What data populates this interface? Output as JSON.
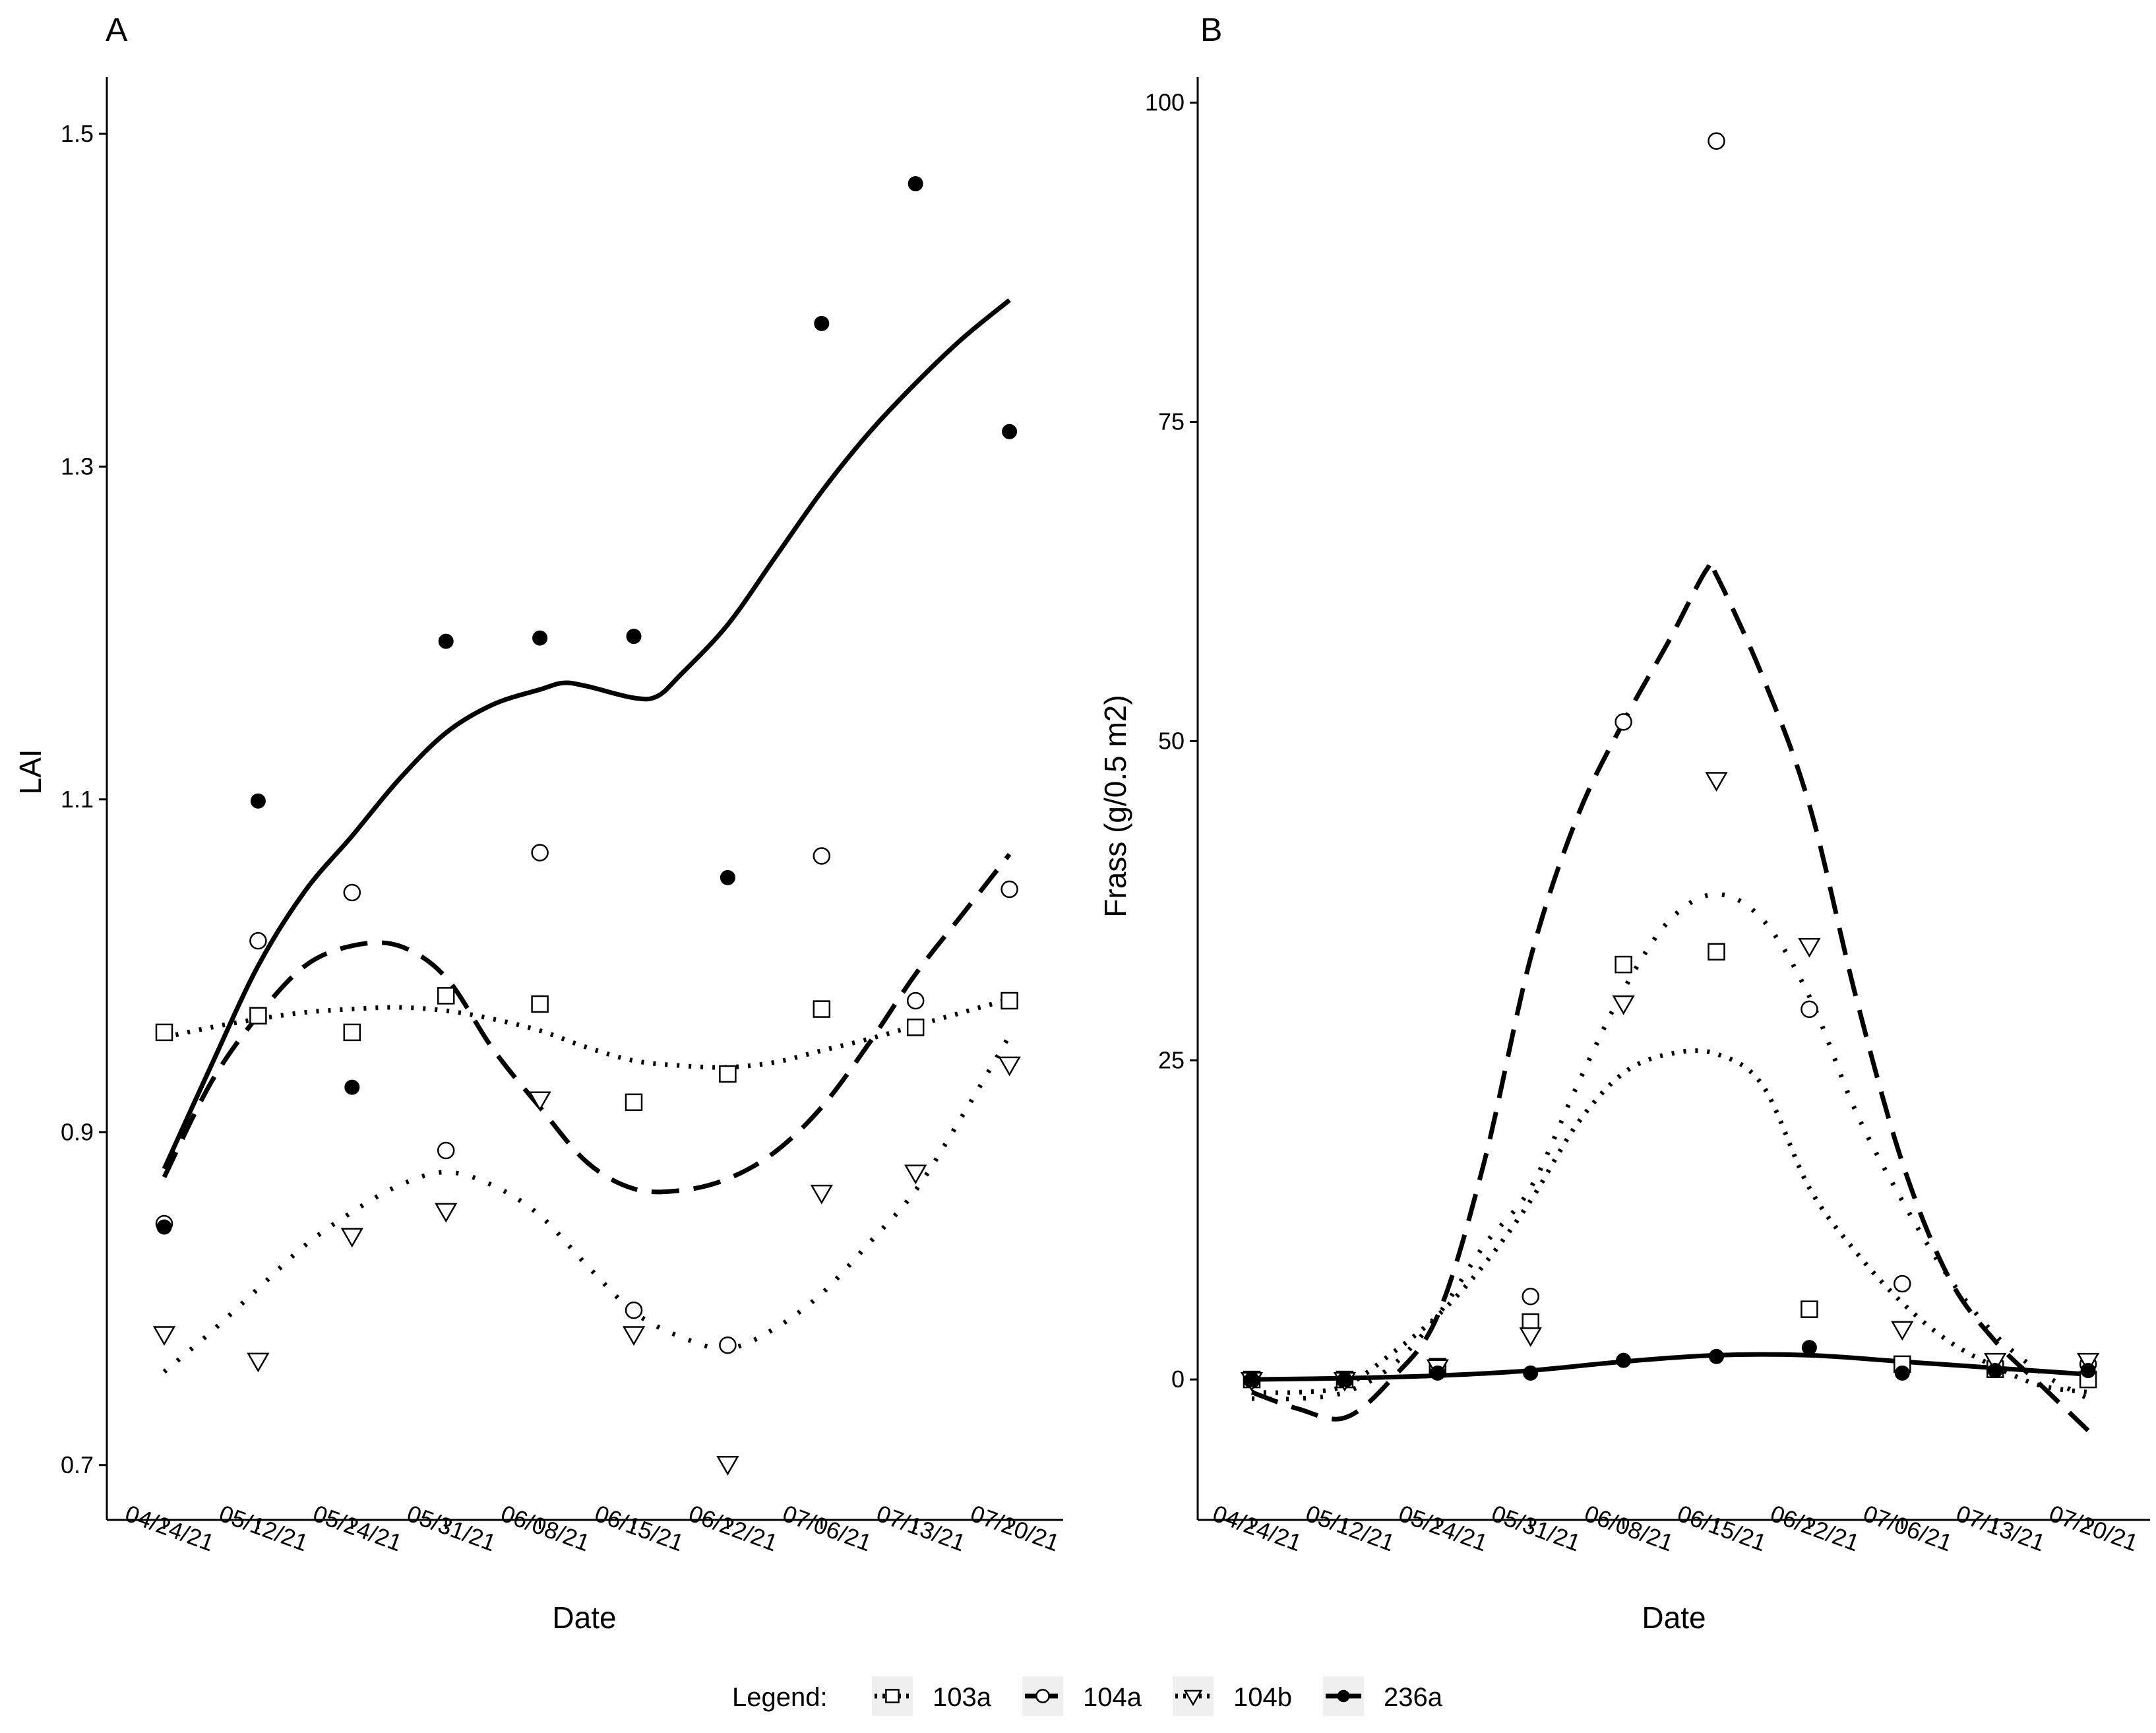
{
  "legend": {
    "title": "Legend:",
    "items": [
      {
        "label": "103a",
        "shape": "square",
        "linetype": "dotted"
      },
      {
        "label": "104a",
        "shape": "circle",
        "linetype": "dashed"
      },
      {
        "label": "104b",
        "shape": "triangle-down",
        "linetype": "dotted"
      },
      {
        "label": "236a",
        "shape": "filled-circle",
        "linetype": "solid"
      }
    ]
  },
  "chart_data": [
    {
      "panel": "A",
      "type": "scatter",
      "title": "",
      "xlabel": "Date",
      "ylabel": "LAI",
      "categories": [
        "04/24/21",
        "05/12/21",
        "05/24/21",
        "05/31/21",
        "06/08/21",
        "06/15/21",
        "06/22/21",
        "07/06/21",
        "07/13/21",
        "07/20/21"
      ],
      "ylim": [
        0.667,
        1.534
      ],
      "yticks": [
        0.7,
        0.9,
        1.1,
        1.3,
        1.5
      ],
      "ytick_labels": [
        "0.7",
        "0.9",
        "1.1",
        "1.3",
        "1.5"
      ],
      "series": [
        {
          "name": "103a",
          "points": [
            [
              0,
              0.96
            ],
            [
              1,
              0.97
            ],
            [
              2,
              0.96
            ],
            [
              3,
              0.982
            ],
            [
              4,
              0.977
            ],
            [
              5,
              0.918
            ],
            [
              6,
              0.935
            ],
            [
              7,
              0.974
            ],
            [
              8,
              0.963
            ],
            [
              9,
              0.979
            ]
          ],
          "smooth": [
            [
              0,
              0.957
            ],
            [
              0.5,
              0.963
            ],
            [
              1,
              0.968
            ],
            [
              1.5,
              0.972
            ],
            [
              2,
              0.974
            ],
            [
              2.5,
              0.975
            ],
            [
              3,
              0.973
            ],
            [
              3.5,
              0.968
            ],
            [
              4,
              0.961
            ],
            [
              4.5,
              0.951
            ],
            [
              5,
              0.943
            ],
            [
              5.5,
              0.94
            ],
            [
              6,
              0.939
            ],
            [
              6.5,
              0.942
            ],
            [
              7,
              0.949
            ],
            [
              7.5,
              0.956
            ],
            [
              8,
              0.964
            ],
            [
              8.5,
              0.972
            ],
            [
              9,
              0.98
            ]
          ]
        },
        {
          "name": "104a",
          "points": [
            [
              0,
              0.845
            ],
            [
              1,
              1.015
            ],
            [
              2,
              1.044
            ],
            [
              3,
              0.889
            ],
            [
              4,
              1.068
            ],
            [
              5,
              0.793
            ],
            [
              6,
              0.772
            ],
            [
              7,
              1.066
            ],
            [
              8,
              0.979
            ],
            [
              9,
              1.046
            ]
          ],
          "smooth": [
            [
              0,
              0.873
            ],
            [
              0.5,
              0.93
            ],
            [
              1,
              0.97
            ],
            [
              1.5,
              1.0
            ],
            [
              2,
              1.012
            ],
            [
              2.5,
              1.012
            ],
            [
              3,
              0.993
            ],
            [
              3.5,
              0.95
            ],
            [
              4,
              0.915
            ],
            [
              4.5,
              0.882
            ],
            [
              5,
              0.866
            ],
            [
              5.5,
              0.865
            ],
            [
              6,
              0.872
            ],
            [
              6.5,
              0.888
            ],
            [
              7,
              0.915
            ],
            [
              7.5,
              0.953
            ],
            [
              8,
              0.995
            ],
            [
              8.5,
              1.031
            ],
            [
              9,
              1.067
            ]
          ]
        },
        {
          "name": "104b",
          "points": [
            [
              0,
              0.779
            ],
            [
              1,
              0.763
            ],
            [
              2,
              0.838
            ],
            [
              3,
              0.853
            ],
            [
              4,
              0.92
            ],
            [
              5,
              0.779
            ],
            [
              6,
              0.701
            ],
            [
              7,
              0.864
            ],
            [
              8,
              0.876
            ],
            [
              9,
              0.941
            ]
          ],
          "smooth": [
            [
              0,
              0.756
            ],
            [
              0.5,
              0.78
            ],
            [
              1,
              0.806
            ],
            [
              1.5,
              0.832
            ],
            [
              2,
              0.852
            ],
            [
              2.5,
              0.868
            ],
            [
              3,
              0.876
            ],
            [
              3.5,
              0.868
            ],
            [
              4,
              0.85
            ],
            [
              4.5,
              0.82
            ],
            [
              5,
              0.792
            ],
            [
              5.5,
              0.777
            ],
            [
              6,
              0.77
            ],
            [
              6.5,
              0.782
            ],
            [
              7,
              0.803
            ],
            [
              7.5,
              0.833
            ],
            [
              8,
              0.865
            ],
            [
              8.5,
              0.91
            ],
            [
              9,
              0.958
            ]
          ]
        },
        {
          "name": "236a",
          "points": [
            [
              0,
              0.843
            ],
            [
              1,
              1.099
            ],
            [
              2,
              0.927
            ],
            [
              3,
              1.195
            ],
            [
              4,
              1.197
            ],
            [
              5,
              1.198
            ],
            [
              6,
              1.053
            ],
            [
              7,
              1.386
            ],
            [
              8,
              1.47
            ],
            [
              9,
              1.321
            ]
          ],
          "smooth": [
            [
              0,
              0.878
            ],
            [
              0.5,
              0.94
            ],
            [
              1,
              1.0
            ],
            [
              1.5,
              1.045
            ],
            [
              2,
              1.078
            ],
            [
              2.5,
              1.112
            ],
            [
              3,
              1.14
            ],
            [
              3.5,
              1.157
            ],
            [
              4,
              1.166
            ],
            [
              4.25,
              1.17
            ],
            [
              4.5,
              1.168
            ],
            [
              5,
              1.161
            ],
            [
              5.25,
              1.162
            ],
            [
              5.5,
              1.175
            ],
            [
              6,
              1.205
            ],
            [
              6.5,
              1.245
            ],
            [
              7,
              1.285
            ],
            [
              7.5,
              1.32
            ],
            [
              8,
              1.35
            ],
            [
              8.5,
              1.377
            ],
            [
              9,
              1.4
            ]
          ]
        }
      ]
    },
    {
      "panel": "B",
      "type": "scatter",
      "title": "",
      "xlabel": "Date",
      "ylabel": "Frass (g/0.5 m2)",
      "categories": [
        "04/24/21",
        "05/12/21",
        "05/24/21",
        "05/31/21",
        "06/08/21",
        "06/15/21",
        "06/22/21",
        "07/06/21",
        "07/13/21",
        "07/20/21"
      ],
      "ylim": [
        -11.0,
        102.0
      ],
      "yticks": [
        0,
        25,
        50,
        75,
        100
      ],
      "ytick_labels": [
        "0",
        "25",
        "50",
        "75",
        "100"
      ],
      "series": [
        {
          "name": "103a",
          "points": [
            [
              0,
              0.0
            ],
            [
              1,
              0.0
            ],
            [
              2,
              1.0
            ],
            [
              3,
              4.5
            ],
            [
              4,
              32.5
            ],
            [
              5,
              33.5
            ],
            [
              6,
              5.5
            ],
            [
              7,
              1.2
            ],
            [
              8,
              0.8
            ],
            [
              9,
              0.0
            ]
          ],
          "smooth": [
            [
              0,
              -1.0
            ],
            [
              0.5,
              -1.0
            ],
            [
              1,
              -0.5
            ],
            [
              1.5,
              2.0
            ],
            [
              2,
              5.0
            ],
            [
              2.5,
              9.0
            ],
            [
              3,
              14.0
            ],
            [
              3.5,
              20.0
            ],
            [
              4,
              24.0
            ],
            [
              4.5,
              25.5
            ],
            [
              5,
              25.5
            ],
            [
              5.5,
              23.0
            ],
            [
              6,
              15.0
            ],
            [
              6.5,
              10.0
            ],
            [
              7,
              6.0
            ],
            [
              7.5,
              3.0
            ],
            [
              8,
              1.0
            ],
            [
              8.5,
              -0.5
            ],
            [
              9,
              -1.0
            ]
          ]
        },
        {
          "name": "104a",
          "points": [
            [
              0,
              0.0
            ],
            [
              1,
              0.0
            ],
            [
              2,
              1.0
            ],
            [
              3,
              6.5
            ],
            [
              4,
              51.5
            ],
            [
              5,
              97.0
            ],
            [
              6,
              29.0
            ],
            [
              7,
              7.5
            ],
            [
              8,
              1.2
            ],
            [
              9,
              1.2
            ]
          ],
          "smooth": [
            [
              0,
              -1.0
            ],
            [
              0.5,
              -2.3
            ],
            [
              1,
              -3.0
            ],
            [
              1.5,
              0.0
            ],
            [
              2,
              5.0
            ],
            [
              2.5,
              17.0
            ],
            [
              3,
              33.0
            ],
            [
              3.5,
              44.0
            ],
            [
              4,
              51.5
            ],
            [
              4.5,
              58.0
            ],
            [
              4.9,
              63.5
            ],
            [
              5,
              63.0
            ],
            [
              5.5,
              55.0
            ],
            [
              6,
              45.0
            ],
            [
              6.5,
              30.0
            ],
            [
              7,
              17.0
            ],
            [
              7.5,
              8.0
            ],
            [
              8,
              3.0
            ],
            [
              8.5,
              -0.5
            ],
            [
              9,
              -4.0
            ]
          ]
        },
        {
          "name": "104b",
          "points": [
            [
              0,
              0.0
            ],
            [
              1,
              0.0
            ],
            [
              2,
              1.0
            ],
            [
              3,
              3.5
            ],
            [
              4,
              29.5
            ],
            [
              5,
              47.0
            ],
            [
              6,
              34.0
            ],
            [
              7,
              4.0
            ],
            [
              8,
              1.5
            ],
            [
              9,
              1.5
            ]
          ],
          "smooth": [
            [
              0,
              -1.5
            ],
            [
              0.5,
              -1.5
            ],
            [
              1,
              -1.0
            ],
            [
              1.5,
              1.0
            ],
            [
              2,
              5.0
            ],
            [
              2.5,
              10.5
            ],
            [
              3,
              15.0
            ],
            [
              3.5,
              23.0
            ],
            [
              4,
              30.5
            ],
            [
              4.5,
              36.0
            ],
            [
              5,
              38.0
            ],
            [
              5.5,
              36.0
            ],
            [
              6,
              30.0
            ],
            [
              6.5,
              21.0
            ],
            [
              7,
              14.0
            ],
            [
              7.5,
              8.0
            ],
            [
              8,
              3.5
            ],
            [
              8.5,
              0.5
            ],
            [
              9,
              -1.5
            ]
          ]
        },
        {
          "name": "236a",
          "points": [
            [
              0,
              0.0
            ],
            [
              1,
              0.0
            ],
            [
              2,
              0.5
            ],
            [
              3,
              0.5
            ],
            [
              4,
              1.5
            ],
            [
              5,
              1.8
            ],
            [
              6,
              2.5
            ],
            [
              7,
              0.5
            ],
            [
              8,
              0.7
            ],
            [
              9,
              0.7
            ]
          ],
          "smooth": [
            [
              0,
              0.0
            ],
            [
              1,
              0.1
            ],
            [
              2,
              0.3
            ],
            [
              3,
              0.7
            ],
            [
              4,
              1.4
            ],
            [
              5,
              1.9
            ],
            [
              6,
              1.9
            ],
            [
              7,
              1.4
            ],
            [
              8,
              0.9
            ],
            [
              9,
              0.4
            ]
          ]
        }
      ]
    }
  ]
}
